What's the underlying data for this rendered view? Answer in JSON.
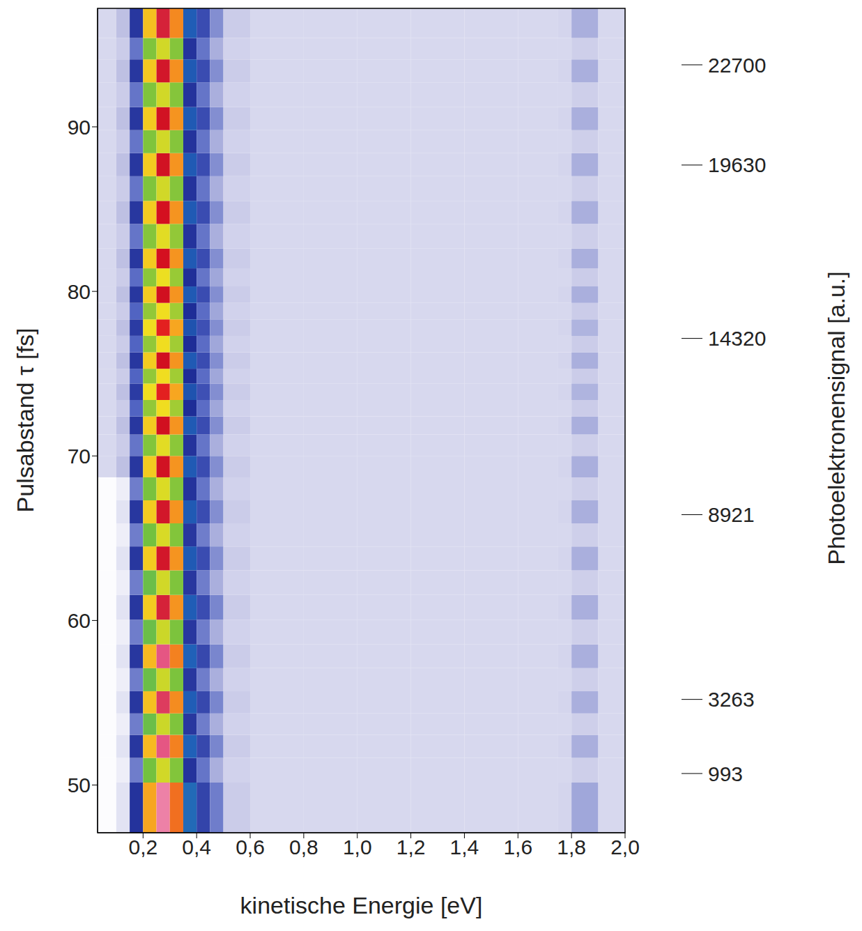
{
  "chart_data": {
    "type": "heatmap",
    "x_label": "kinetische Energie [eV]",
    "y_label": "Pulsabstand τ [fs]",
    "xlim": [
      0.03,
      2.0
    ],
    "xticks": [
      {
        "value": 0.2,
        "label": "0,2"
      },
      {
        "value": 0.4,
        "label": "0,4"
      },
      {
        "value": 0.6,
        "label": "0,6"
      },
      {
        "value": 0.8,
        "label": "0,8"
      },
      {
        "value": 1.0,
        "label": "1,0"
      },
      {
        "value": 1.2,
        "label": "1,2"
      },
      {
        "value": 1.4,
        "label": "1,4"
      },
      {
        "value": 1.6,
        "label": "1,6"
      },
      {
        "value": 1.8,
        "label": "1,8"
      },
      {
        "value": 2.0,
        "label": "2,0"
      }
    ],
    "ylim": [
      47.1,
      97.2
    ],
    "yticks": [
      50,
      60,
      70,
      80,
      90
    ],
    "x_edges": [
      0.03,
      0.1,
      0.15,
      0.2,
      0.25,
      0.3,
      0.35,
      0.4,
      0.45,
      0.5,
      0.6,
      0.8,
      1.0,
      1.2,
      1.4,
      1.6,
      1.75,
      1.8,
      1.9,
      2.0
    ],
    "y_edges": [
      47.1,
      50.15,
      51.65,
      53.05,
      54.35,
      55.7,
      57.1,
      58.55,
      60.05,
      61.55,
      63.05,
      64.5,
      65.9,
      67.3,
      68.7,
      70.0,
      71.3,
      72.4,
      73.4,
      74.4,
      75.3,
      76.3,
      77.3,
      78.3,
      79.3,
      80.3,
      81.4,
      82.6,
      84.1,
      85.5,
      87.0,
      88.4,
      89.8,
      91.2,
      92.7,
      94.1,
      95.4,
      97.2
    ],
    "cells": [
      [
        1050,
        1500,
        4300,
        14500,
        21500,
        16000,
        6200,
        3900,
        2900,
        1900,
        1700,
        1700,
        1700,
        1700,
        1700,
        1700,
        1750,
        2400,
        1700
      ],
      [
        1050,
        1300,
        2900,
        9000,
        12000,
        9500,
        4300,
        3000,
        2300,
        1800,
        1700,
        1700,
        1700,
        1700,
        1700,
        1700,
        1700,
        1850,
        1700
      ],
      [
        1050,
        1500,
        4200,
        14000,
        21000,
        15500,
        6000,
        3800,
        2800,
        1900,
        1700,
        1700,
        1700,
        1700,
        1700,
        1700,
        1750,
        2300,
        1700
      ],
      [
        1050,
        1300,
        2900,
        8800,
        11800,
        9400,
        4200,
        2900,
        2300,
        1800,
        1700,
        1700,
        1700,
        1700,
        1700,
        1700,
        1700,
        1850,
        1700
      ],
      [
        1050,
        1500,
        4200,
        13800,
        20500,
        15200,
        5900,
        3800,
        2800,
        1900,
        1700,
        1700,
        1700,
        1700,
        1700,
        1700,
        1750,
        2300,
        1700
      ],
      [
        1050,
        1300,
        2900,
        8800,
        11800,
        9300,
        4200,
        2900,
        2300,
        1800,
        1700,
        1700,
        1700,
        1700,
        1700,
        1700,
        1700,
        1850,
        1700
      ],
      [
        1050,
        1500,
        4200,
        14000,
        21000,
        15500,
        6000,
        3800,
        2800,
        1900,
        1700,
        1700,
        1700,
        1700,
        1700,
        1700,
        1750,
        2300,
        1700
      ],
      [
        1050,
        1300,
        2900,
        8800,
        11800,
        9300,
        4200,
        2900,
        2300,
        1800,
        1700,
        1700,
        1700,
        1700,
        1700,
        1700,
        1700,
        1850,
        1700
      ],
      [
        1050,
        1500,
        4200,
        13500,
        20000,
        15000,
        5900,
        3700,
        2800,
        1900,
        1700,
        1700,
        1700,
        1700,
        1700,
        1700,
        1750,
        2300,
        1700
      ],
      [
        1050,
        1300,
        2900,
        8800,
        12000,
        9400,
        4200,
        2900,
        2300,
        1800,
        1700,
        1700,
        1700,
        1700,
        1700,
        1700,
        1700,
        1850,
        1700
      ],
      [
        1050,
        1500,
        4200,
        13500,
        19800,
        15000,
        5800,
        3700,
        2700,
        1900,
        1700,
        1700,
        1700,
        1700,
        1700,
        1700,
        1750,
        2300,
        1700
      ],
      [
        1050,
        1300,
        2900,
        9000,
        12200,
        9500,
        4200,
        2900,
        2300,
        1800,
        1700,
        1700,
        1700,
        1700,
        1700,
        1700,
        1700,
        1850,
        1700
      ],
      [
        1050,
        1500,
        4200,
        13500,
        19800,
        15000,
        5800,
        3700,
        2700,
        1900,
        1700,
        1700,
        1700,
        1700,
        1700,
        1700,
        1750,
        2300,
        1700
      ],
      [
        1050,
        1300,
        2900,
        9200,
        12300,
        9600,
        4300,
        3000,
        2300,
        1800,
        1700,
        1700,
        1700,
        1700,
        1700,
        1700,
        1700,
        1850,
        1700
      ],
      [
        1700,
        2100,
        4200,
        13500,
        19700,
        15000,
        5800,
        3700,
        2700,
        1900,
        1700,
        1700,
        1700,
        1700,
        1700,
        1700,
        1750,
        2300,
        1700
      ],
      [
        1700,
        1900,
        3000,
        9500,
        12500,
        9800,
        4300,
        3000,
        2300,
        1800,
        1700,
        1700,
        1700,
        1700,
        1700,
        1700,
        1700,
        1850,
        1700
      ],
      [
        1700,
        2100,
        4200,
        13500,
        19600,
        15000,
        5800,
        3700,
        2700,
        1900,
        1700,
        1700,
        1700,
        1700,
        1700,
        1700,
        1750,
        2300,
        1700
      ],
      [
        1700,
        1900,
        3200,
        10000,
        13000,
        10500,
        4500,
        3100,
        2400,
        1800,
        1700,
        1700,
        1700,
        1700,
        1700,
        1700,
        1700,
        1900,
        1700
      ],
      [
        1700,
        2100,
        4100,
        13000,
        18500,
        14500,
        5600,
        3600,
        2700,
        1900,
        1700,
        1700,
        1700,
        1700,
        1700,
        1700,
        1750,
        2250,
        1700
      ],
      [
        1700,
        1900,
        3200,
        10000,
        13000,
        10500,
        4500,
        3100,
        2400,
        1800,
        1700,
        1700,
        1700,
        1700,
        1700,
        1700,
        1700,
        1900,
        1700
      ],
      [
        1700,
        2100,
        4200,
        13500,
        19600,
        15000,
        5800,
        3700,
        2700,
        1900,
        1700,
        1700,
        1700,
        1700,
        1700,
        1700,
        1750,
        2300,
        1700
      ],
      [
        1700,
        1900,
        3200,
        10000,
        13000,
        10500,
        4500,
        3100,
        2400,
        1800,
        1700,
        1700,
        1700,
        1700,
        1700,
        1700,
        1700,
        1900,
        1700
      ],
      [
        1700,
        2100,
        4100,
        13000,
        18500,
        14500,
        5600,
        3600,
        2700,
        1900,
        1700,
        1700,
        1700,
        1700,
        1700,
        1700,
        1750,
        2250,
        1700
      ],
      [
        1700,
        1900,
        3200,
        10000,
        13000,
        10500,
        4500,
        3100,
        2400,
        1800,
        1700,
        1700,
        1700,
        1700,
        1700,
        1700,
        1700,
        1900,
        1700
      ],
      [
        1700,
        2100,
        4200,
        13500,
        19600,
        15000,
        5800,
        3700,
        2700,
        1900,
        1700,
        1700,
        1700,
        1700,
        1700,
        1700,
        1750,
        2300,
        1700
      ],
      [
        1700,
        1900,
        3100,
        9800,
        12800,
        10200,
        4400,
        3000,
        2400,
        1800,
        1700,
        1700,
        1700,
        1700,
        1700,
        1700,
        1700,
        1900,
        1700
      ],
      [
        1700,
        2100,
        4200,
        13500,
        19500,
        15000,
        5800,
        3700,
        2700,
        1900,
        1700,
        1700,
        1700,
        1700,
        1700,
        1700,
        1750,
        2300,
        1700
      ],
      [
        1700,
        1900,
        3000,
        9600,
        12500,
        10000,
        4300,
        3000,
        2300,
        1800,
        1700,
        1700,
        1700,
        1700,
        1700,
        1700,
        1700,
        1850,
        1700
      ],
      [
        1700,
        2100,
        4200,
        13500,
        19500,
        15000,
        5800,
        3700,
        2700,
        1900,
        1700,
        1700,
        1700,
        1700,
        1700,
        1700,
        1750,
        2300,
        1700
      ],
      [
        1700,
        1900,
        3000,
        9400,
        12000,
        9600,
        4300,
        3000,
        2300,
        1800,
        1700,
        1700,
        1700,
        1700,
        1700,
        1700,
        1700,
        1850,
        1700
      ],
      [
        1700,
        2100,
        4200,
        13500,
        19700,
        15000,
        5800,
        3700,
        2700,
        1900,
        1700,
        1700,
        1700,
        1700,
        1700,
        1700,
        1750,
        2300,
        1700
      ],
      [
        1700,
        1900,
        3000,
        9400,
        12000,
        9600,
        4300,
        3000,
        2300,
        1800,
        1700,
        1700,
        1700,
        1700,
        1700,
        1700,
        1700,
        1850,
        1700
      ],
      [
        1700,
        2100,
        4200,
        13500,
        19700,
        15000,
        5800,
        3700,
        2700,
        1900,
        1700,
        1700,
        1700,
        1700,
        1700,
        1700,
        1750,
        2300,
        1700
      ],
      [
        1700,
        1900,
        3000,
        9400,
        12000,
        9600,
        4300,
        3000,
        2300,
        1800,
        1700,
        1700,
        1700,
        1700,
        1700,
        1700,
        1700,
        1850,
        1700
      ],
      [
        1700,
        2100,
        4200,
        13600,
        19800,
        15100,
        5800,
        3700,
        2700,
        1900,
        1700,
        1700,
        1700,
        1700,
        1700,
        1700,
        1750,
        2300,
        1700
      ],
      [
        1700,
        1900,
        3000,
        9400,
        12000,
        9600,
        4300,
        3000,
        2300,
        1800,
        1700,
        1700,
        1700,
        1700,
        1700,
        1700,
        1700,
        1850,
        1700
      ],
      [
        1700,
        2100,
        4200,
        13800,
        20000,
        15300,
        5900,
        3700,
        2700,
        1900,
        1700,
        1700,
        1700,
        1700,
        1700,
        1700,
        1750,
        2300,
        1700
      ]
    ],
    "colorbar": {
      "label": "Photoelektronensignal [a.u.]",
      "range": [
        993,
        22700
      ],
      "ticks": [
        993,
        3263,
        8921,
        14320,
        19630,
        22700
      ]
    }
  }
}
